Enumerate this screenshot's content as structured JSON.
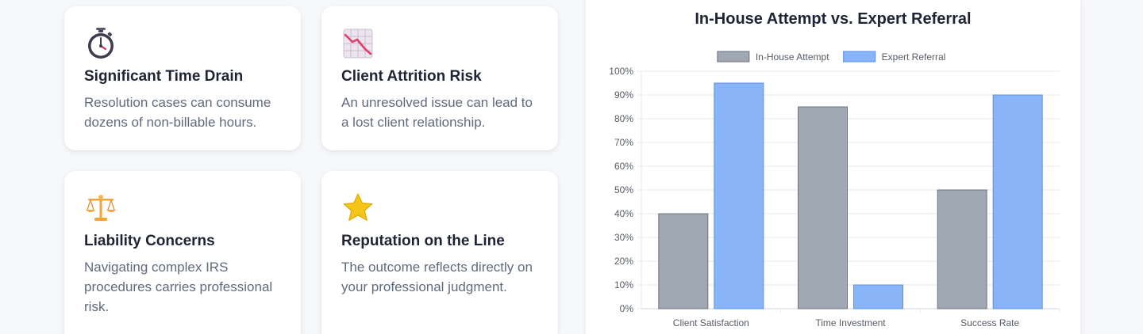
{
  "cards": [
    {
      "icon": "stopwatch-icon",
      "title": "Significant Time Drain",
      "description": "Resolution cases can consume dozens of non-billable hours."
    },
    {
      "icon": "chart-decreasing-icon",
      "title": "Client Attrition Risk",
      "description": "An unresolved issue can lead to a lost client relationship."
    },
    {
      "icon": "balance-scale-icon",
      "title": "Liability Concerns",
      "description": "Navigating complex IRS procedures carries professional risk."
    },
    {
      "icon": "star-icon",
      "title": "Reputation on the Line",
      "description": "The outcome reflects directly on your professional judgment."
    }
  ],
  "chart_data": {
    "type": "bar",
    "title": "In-House Attempt vs. Expert Referral",
    "categories": [
      "Client Satisfaction",
      "Time Investment",
      "Success Rate"
    ],
    "series": [
      {
        "name": "In-House Attempt",
        "values": [
          40,
          85,
          50
        ],
        "color": "#a0a8b3",
        "border": "#6b7480"
      },
      {
        "name": "Expert Referral",
        "values": [
          95,
          10,
          90
        ],
        "color": "#8ab4f8",
        "border": "#5b8fe8"
      }
    ],
    "ylim": [
      0,
      100
    ],
    "yticks": [
      "0%",
      "10%",
      "20%",
      "30%",
      "40%",
      "50%",
      "60%",
      "70%",
      "80%",
      "90%",
      "100%"
    ],
    "legend_position": "top-center",
    "grid": true
  }
}
